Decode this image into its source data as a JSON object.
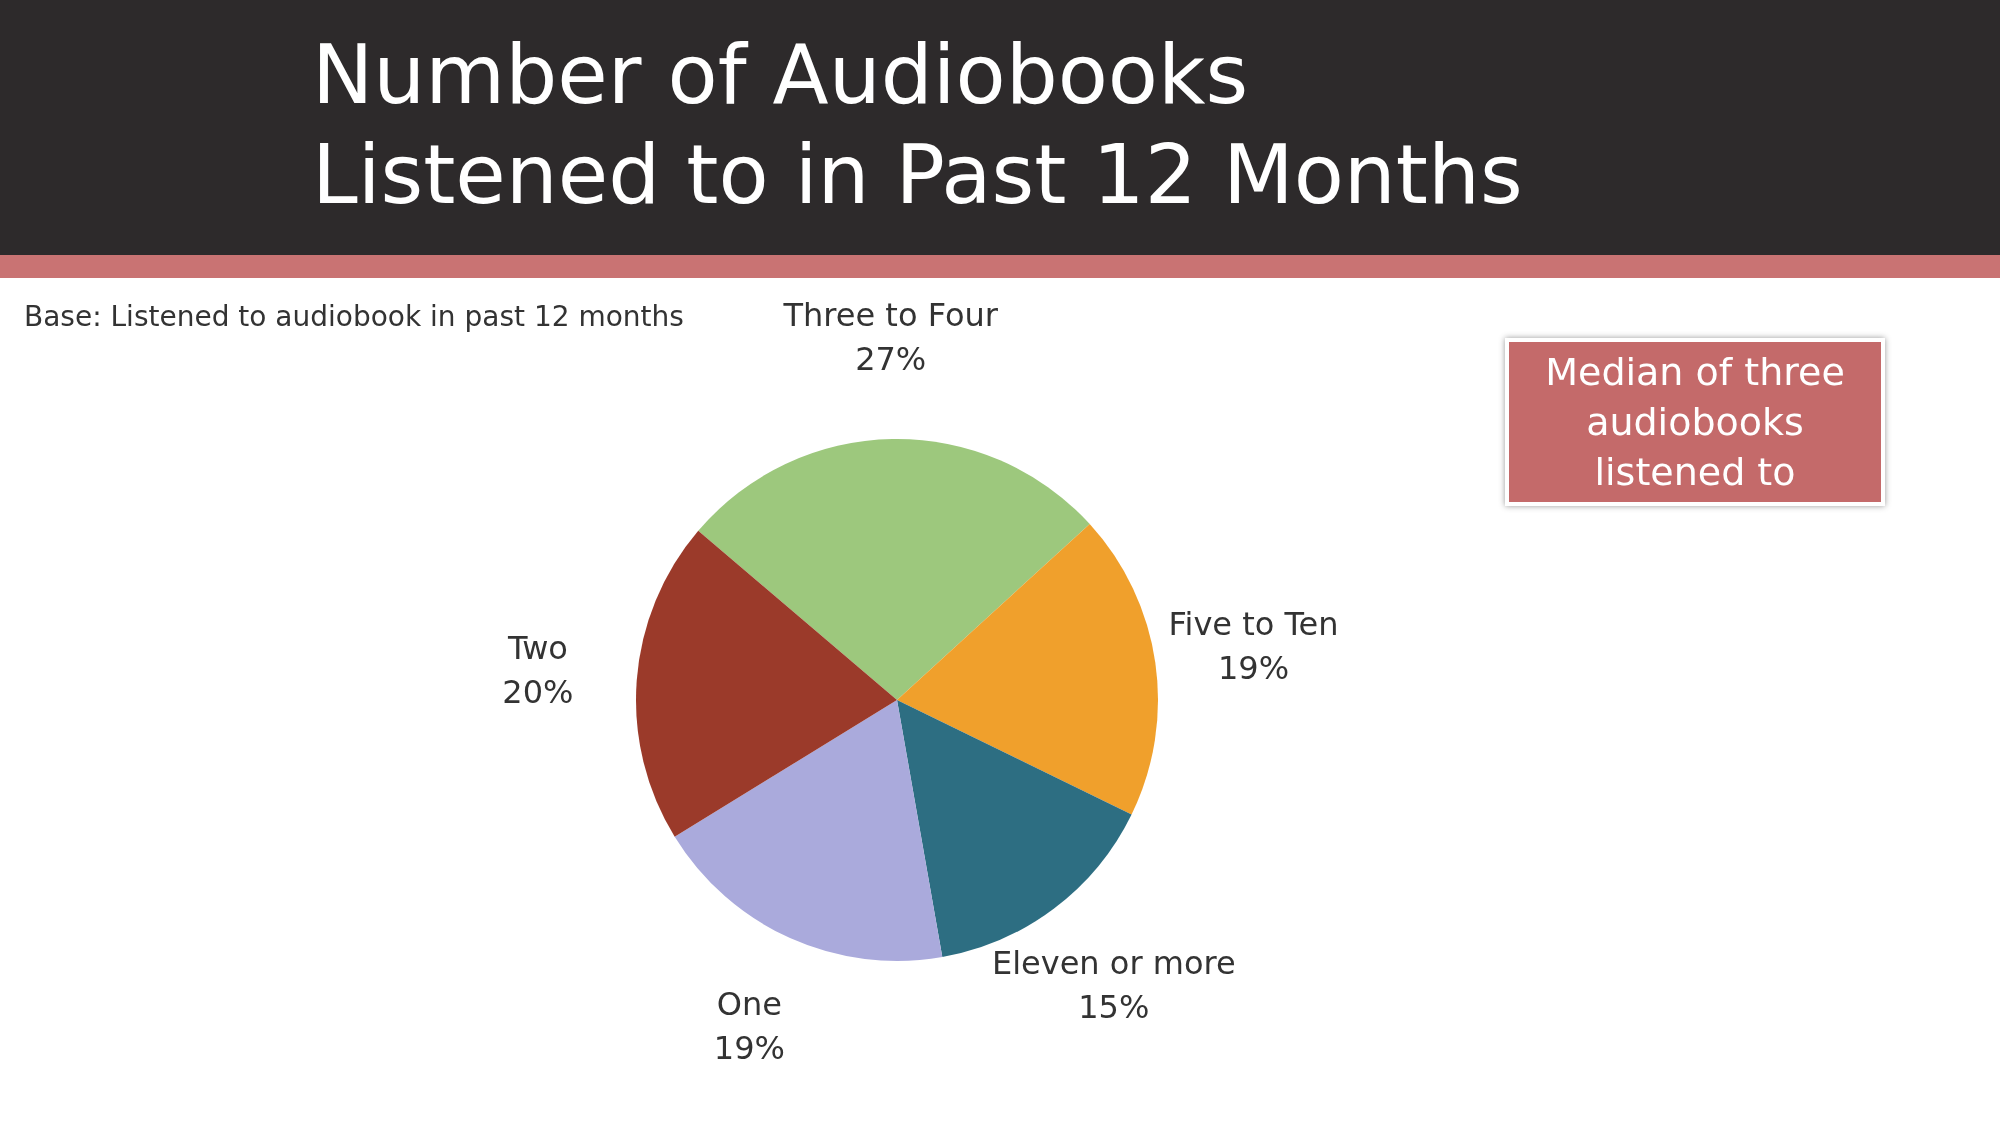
{
  "chart_data": {
    "type": "pie",
    "title": "Number of Audiobooks Listened to in Past 12 Months",
    "subtitle": "Base: Listened to audiobook in past 12 months",
    "categories": [
      "Three to Four",
      "Five to Ten",
      "Eleven or more",
      "One",
      "Two"
    ],
    "values": [
      27,
      19,
      15,
      19,
      20
    ],
    "value_labels": [
      "27%",
      "19%",
      "15%",
      "19%",
      "20%"
    ],
    "colors": [
      "#9dc87d",
      "#f0a02c",
      "#2d6e82",
      "#aaaadc",
      "#9b3a2a"
    ],
    "annotations": [
      "Median of three audiobooks listened to"
    ]
  }
}
